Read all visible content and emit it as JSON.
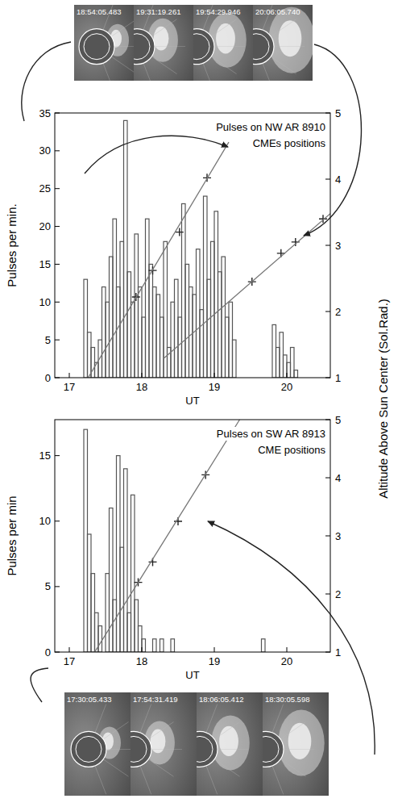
{
  "images": {
    "top_timestamps": [
      "18:54:05.483",
      "19:31:19.261",
      "19:54:29.946",
      "20:06:05.740"
    ],
    "bottom_timestamps": [
      "17:30:05.433",
      "17:54:31.419",
      "18:06:05.412",
      "18:30:05.598"
    ]
  },
  "chart_data": [
    {
      "type": "histogram",
      "annotations": [
        "Pulses on NW AR 8910",
        "CMEs positions"
      ],
      "xlabel": "UT",
      "ylabel": "Pulses per min.",
      "y2label": "Altitude Above Sun Center (Sol.Rad.)",
      "color": "#555555",
      "bins": [
        17.2,
        17.25,
        17.3,
        17.35,
        17.4,
        17.45,
        17.5,
        17.55,
        17.6,
        17.65,
        17.7,
        17.75,
        17.8,
        17.85,
        17.9,
        17.95,
        18,
        18.05,
        18.1,
        18.15,
        18.2,
        18.25,
        18.3,
        18.35,
        18.4,
        18.45,
        18.5,
        18.55,
        18.6,
        18.65,
        18.7,
        18.75,
        18.8,
        18.85,
        18.9,
        18.95,
        19,
        19.05,
        19.1,
        19.15,
        19.2,
        19.25,
        19.3,
        19.35,
        19.4,
        19.45,
        19.5,
        19.55,
        19.6,
        19.65,
        19.7,
        19.75,
        19.8,
        19.85,
        19.9,
        19.95,
        20,
        20.05,
        20.1,
        20.15,
        20.2
      ],
      "values": [
        13,
        6,
        4,
        2,
        5,
        12,
        10,
        16,
        21,
        12,
        18,
        34,
        14,
        10,
        19,
        12,
        8,
        21,
        15,
        12,
        11,
        8,
        18,
        4,
        10,
        13,
        8,
        23,
        15,
        12,
        11,
        17,
        9,
        24,
        13,
        18,
        22,
        14,
        16,
        8,
        10,
        5,
        0,
        0,
        0,
        0,
        0,
        0,
        0,
        0,
        0,
        0,
        7,
        4,
        6,
        3,
        2,
        4,
        1,
        0
      ],
      "xlim": [
        16.8,
        20.6
      ],
      "xticks": [
        17,
        18,
        19,
        20
      ],
      "ylim": [
        0,
        35
      ],
      "yticks": [
        0,
        5,
        10,
        15,
        20,
        25,
        30,
        35
      ],
      "y2lim": [
        1,
        5
      ],
      "y2ticks": [
        1,
        2,
        3,
        4,
        5
      ],
      "grid": false,
      "series": [
        {
          "type": "scatter",
          "marker": "plus",
          "axis": "y2",
          "color": "#222222",
          "x": [
            17.92,
            18.15,
            18.52,
            18.9
          ],
          "values": [
            2.22,
            2.62,
            3.2,
            4.02
          ]
        },
        {
          "type": "line",
          "line_style": "solid",
          "axis": "y2",
          "color": "#777777",
          "x": [
            17.26,
            19.2
          ],
          "values": [
            1,
            4.56
          ]
        },
        {
          "type": "scatter",
          "marker": "plus",
          "axis": "y2",
          "color": "#222222",
          "x": [
            19.52,
            19.92,
            20.12,
            20.5
          ],
          "values": [
            2.45,
            2.88,
            3.05,
            3.4
          ]
        },
        {
          "type": "line",
          "line_style": "solid",
          "axis": "y2",
          "color": "#777777",
          "x": [
            18.3,
            20.6
          ],
          "values": [
            1.29,
            3.48
          ]
        }
      ]
    },
    {
      "type": "histogram",
      "annotations": [
        "Pulses on SW AR 8913",
        "CME positions"
      ],
      "xlabel": "UT",
      "ylabel": "Pulses per min",
      "color": "#555555",
      "bins": [
        17.2,
        17.25,
        17.3,
        17.35,
        17.4,
        17.45,
        17.5,
        17.55,
        17.6,
        17.65,
        17.7,
        17.75,
        17.8,
        17.85,
        17.9,
        17.95,
        18,
        18.05,
        18.1,
        18.15,
        18.2,
        18.25,
        18.3,
        18.35,
        18.4,
        18.45,
        18.5,
        18.55,
        18.6,
        18.65,
        18.7,
        18.75,
        18.8,
        18.85,
        18.9,
        18.95,
        19,
        19.05,
        19.1,
        19.15,
        19.2,
        19.25,
        19.3,
        19.35,
        19.4,
        19.45,
        19.5,
        19.55,
        19.6,
        19.65,
        19.7,
        19.75
      ],
      "values": [
        17,
        9,
        6,
        3,
        2,
        0,
        6,
        11,
        4,
        15,
        8,
        14,
        3,
        12,
        4,
        2,
        1,
        0,
        0,
        1,
        0,
        1,
        0,
        0,
        1,
        0,
        0,
        0,
        0,
        0,
        0,
        0,
        0,
        0,
        0,
        0,
        0,
        0,
        0,
        0,
        0,
        0,
        0,
        0,
        0,
        0,
        0,
        0,
        0,
        1,
        0
      ],
      "xlim": [
        16.8,
        20.6
      ],
      "xticks": [
        17,
        18,
        19,
        20
      ],
      "ylim": [
        0,
        17.75
      ],
      "yticks": [
        0,
        5,
        10,
        15
      ],
      "y2lim": [
        1,
        5
      ],
      "y2ticks": [
        1,
        2,
        3,
        4,
        5
      ],
      "grid": false,
      "series": [
        {
          "type": "scatter",
          "marker": "plus",
          "axis": "y2",
          "color": "#222222",
          "x": [
            17.95,
            18.15,
            18.5,
            18.88
          ],
          "values": [
            2.2,
            2.55,
            3.25,
            4.05
          ]
        },
        {
          "type": "line",
          "line_style": "solid",
          "axis": "y2",
          "color": "#777777",
          "x": [
            17.35,
            19.35
          ],
          "values": [
            1,
            5
          ]
        }
      ]
    }
  ]
}
